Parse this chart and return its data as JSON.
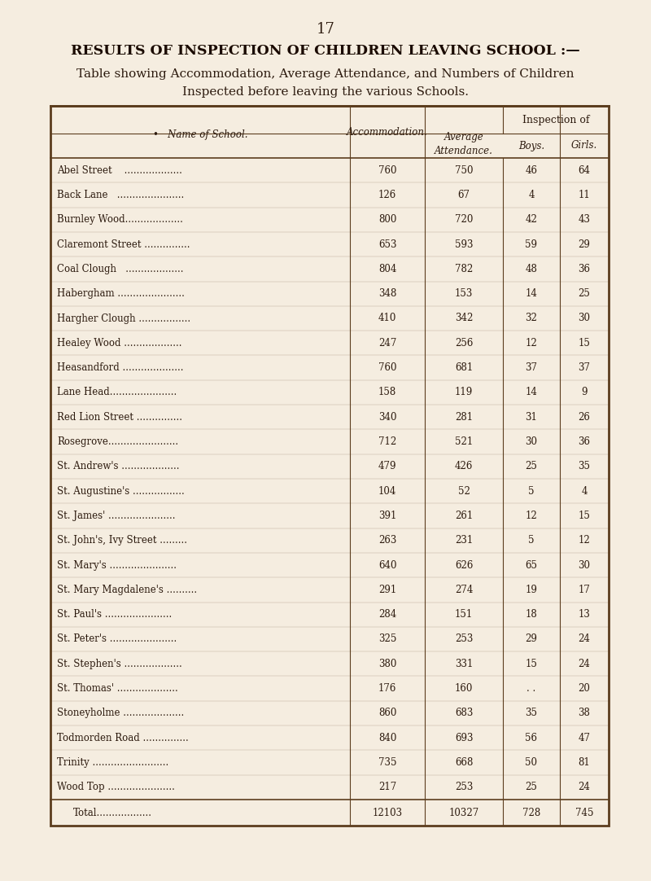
{
  "page_number": "17",
  "title": "RESULTS OF INSPECTION OF CHILDREN LEAVING SCHOOL :—",
  "subtitle": "Table showing Accommodation, Average Attendance, and Numbers of Children\nInspected before leaving the various Schools.",
  "col_headers": [
    "Name of School.",
    "Accommodation.",
    "Average\nAttendance.",
    "Boys.",
    "Girls."
  ],
  "inspection_of_header": "Inspection of",
  "rows": [
    [
      "Abel Street    ...................",
      760,
      750,
      46,
      64
    ],
    [
      "Back Lane   ......................",
      126,
      67,
      4,
      11
    ],
    [
      "Burnley Wood...................",
      800,
      720,
      42,
      43
    ],
    [
      "Claremont Street ...............",
      653,
      593,
      59,
      29
    ],
    [
      "Coal Clough   ...................",
      804,
      782,
      48,
      36
    ],
    [
      "Habergham ......................",
      348,
      153,
      14,
      25
    ],
    [
      "Hargher Clough .................",
      410,
      342,
      32,
      30
    ],
    [
      "Healey Wood ...................",
      247,
      256,
      12,
      15
    ],
    [
      "Heasandford ....................",
      760,
      681,
      37,
      37
    ],
    [
      "Lane Head......................",
      158,
      119,
      14,
      9
    ],
    [
      "Red Lion Street ...............",
      340,
      281,
      31,
      26
    ],
    [
      "Rosegrove.......................",
      712,
      521,
      30,
      36
    ],
    [
      "St. Andrew's ...................",
      479,
      426,
      25,
      35
    ],
    [
      "St. Augustine's .................",
      104,
      52,
      5,
      4
    ],
    [
      "St. James' ......................",
      391,
      261,
      12,
      15
    ],
    [
      "St. John's, Ivy Street .........",
      263,
      231,
      5,
      12
    ],
    [
      "St. Mary's ......................",
      640,
      626,
      65,
      30
    ],
    [
      "St. Mary Magdalene's ..........",
      291,
      274,
      19,
      17
    ],
    [
      "St. Paul's ......................",
      284,
      151,
      18,
      13
    ],
    [
      "St. Peter's ......................",
      325,
      253,
      29,
      24
    ],
    [
      "St. Stephen's ...................",
      380,
      331,
      15,
      24
    ],
    [
      "St. Thomas' ....................",
      176,
      160,
      ". .",
      20
    ],
    [
      "Stoneyholme ....................",
      860,
      683,
      35,
      38
    ],
    [
      "Todmorden Road ...............",
      840,
      693,
      56,
      47
    ],
    [
      "Trinity .........................",
      735,
      668,
      50,
      81
    ],
    [
      "Wood Top ......................",
      217,
      253,
      25,
      24
    ]
  ],
  "total_row": [
    "Total...............",
    12103,
    10327,
    728,
    745
  ],
  "bg_color": "#f5ede0",
  "text_color": "#2c1a0e",
  "border_color": "#5c3d1e",
  "title_color": "#1a0a00"
}
